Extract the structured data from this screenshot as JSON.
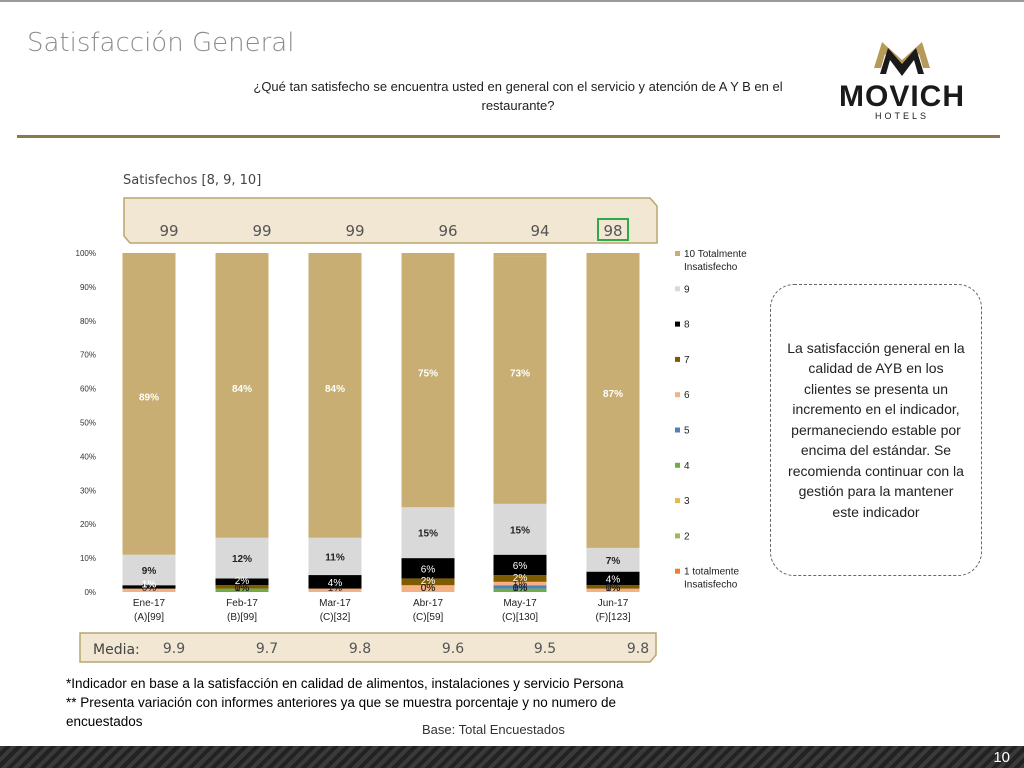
{
  "header": {
    "title": "Satisfacción General",
    "question": "¿Qué tan satisfecho se encuentra usted en general con el servicio y atención de A Y B en el restaurante?"
  },
  "logo": {
    "brand": "MOVICH",
    "subtitle": "HOTELS"
  },
  "chart_data": {
    "type": "bar",
    "stacked": true,
    "top_band_label": "Satisfechos [8, 9, 10]",
    "satisfied": [
      99,
      99,
      99,
      96,
      94,
      98
    ],
    "highlight_index": 5,
    "categories": [
      "Ene-17\n(A)[99]",
      "Feb-17\n(B)[99]",
      "Mar-17\n(C)[32]",
      "Abr-17\n(C)[59]",
      "May-17\n(C)[130]",
      "Jun-17\n(F)[123]"
    ],
    "y_ticks": [
      "0%",
      "10%",
      "20%",
      "30%",
      "40%",
      "50%",
      "60%",
      "70%",
      "80%",
      "90%",
      "100%"
    ],
    "ylim": [
      0,
      100
    ],
    "legend": [
      "10 Totalmente Insatisfecho",
      "9",
      "8",
      "7",
      "6",
      "5",
      "4",
      "3",
      "2",
      "1 totalmente Insatisfecho"
    ],
    "legend_colors": [
      "#c8ae72",
      "#d9d9d9",
      "#000000",
      "#7f5b00",
      "#f4b183",
      "#4f81bd",
      "#70ad47",
      "#e6b84d",
      "#9bbb59",
      "#ed7d31"
    ],
    "series": [
      {
        "name": "1 totalmente Insatisfecho",
        "color": "#ed7d31",
        "values": [
          0,
          0,
          0,
          0,
          0,
          0
        ],
        "labels": [
          "0%",
          "0%",
          "",
          "0%",
          "0%",
          "0%"
        ]
      },
      {
        "name": "2",
        "color": "#9bbb59",
        "values": [
          0,
          0,
          0,
          0,
          0,
          0
        ],
        "labels": [
          "",
          "0%",
          "",
          "0%",
          "0%",
          "0%"
        ]
      },
      {
        "name": "3",
        "color": "#e6b84d",
        "values": [
          0,
          0,
          0,
          0,
          0,
          0
        ],
        "labels": [
          "",
          "",
          "",
          "",
          "",
          ""
        ]
      },
      {
        "name": "4",
        "color": "#70ad47",
        "values": [
          0,
          1,
          0,
          0,
          1,
          0
        ],
        "labels": [
          "",
          "1%",
          "",
          "",
          "1%",
          ""
        ]
      },
      {
        "name": "5",
        "color": "#4f81bd",
        "values": [
          0,
          0,
          0,
          0,
          1,
          0
        ],
        "labels": [
          "",
          "",
          "",
          "",
          "1%",
          ""
        ]
      },
      {
        "name": "6",
        "color": "#f4b183",
        "values": [
          1,
          0,
          1,
          2,
          1,
          1
        ],
        "labels": [
          "",
          "",
          "1%",
          "",
          "",
          "1%"
        ]
      },
      {
        "name": "7",
        "color": "#7f5b00",
        "values": [
          0,
          1,
          0,
          2,
          2,
          1
        ],
        "labels": [
          "",
          "",
          "",
          "2%",
          "2%",
          ""
        ]
      },
      {
        "name": "8",
        "color": "#000000",
        "values": [
          1,
          2,
          4,
          6,
          6,
          4
        ],
        "labels": [
          "1%",
          "2%",
          "4%",
          "6%",
          "6%",
          "4%"
        ]
      },
      {
        "name": "9",
        "color": "#d9d9d9",
        "values": [
          9,
          12,
          11,
          15,
          15,
          7
        ],
        "labels": [
          "9%",
          "12%",
          "11%",
          "15%",
          "15%",
          "7%"
        ]
      },
      {
        "name": "10 Totalmente Insatisfecho",
        "color": "#c8ae72",
        "values": [
          89,
          84,
          84,
          75,
          73,
          87
        ],
        "labels": [
          "89%",
          "84%",
          "84%",
          "75%",
          "73%",
          "87%"
        ]
      }
    ],
    "media_label": "Media:",
    "media": [
      "9.9",
      "9.7",
      "9.8",
      "9.6",
      "9.5",
      "9.8"
    ]
  },
  "note": "La satisfacción general en la calidad de AYB en los clientes se presenta un incremento en el indicador, permaneciendo estable por encima del estándar. Se recomienda continuar con la gestión para la mantener este indicador",
  "footnote": {
    "line1": "*Indicador en base a la satisfacción en calidad de alimentos, instalaciones y servicio Persona",
    "line2": "** Presenta variación con informes anteriores ya que se muestra porcentaje y no numero de encuestados"
  },
  "base": "Base: Total Encuestados",
  "page_number": "10",
  "colors": {
    "gold": "#c8ae72",
    "band": "#f1e7d2",
    "band_border": "#b9a66f",
    "highlight": "#2ea84a",
    "rule": "#8c7a4e"
  }
}
